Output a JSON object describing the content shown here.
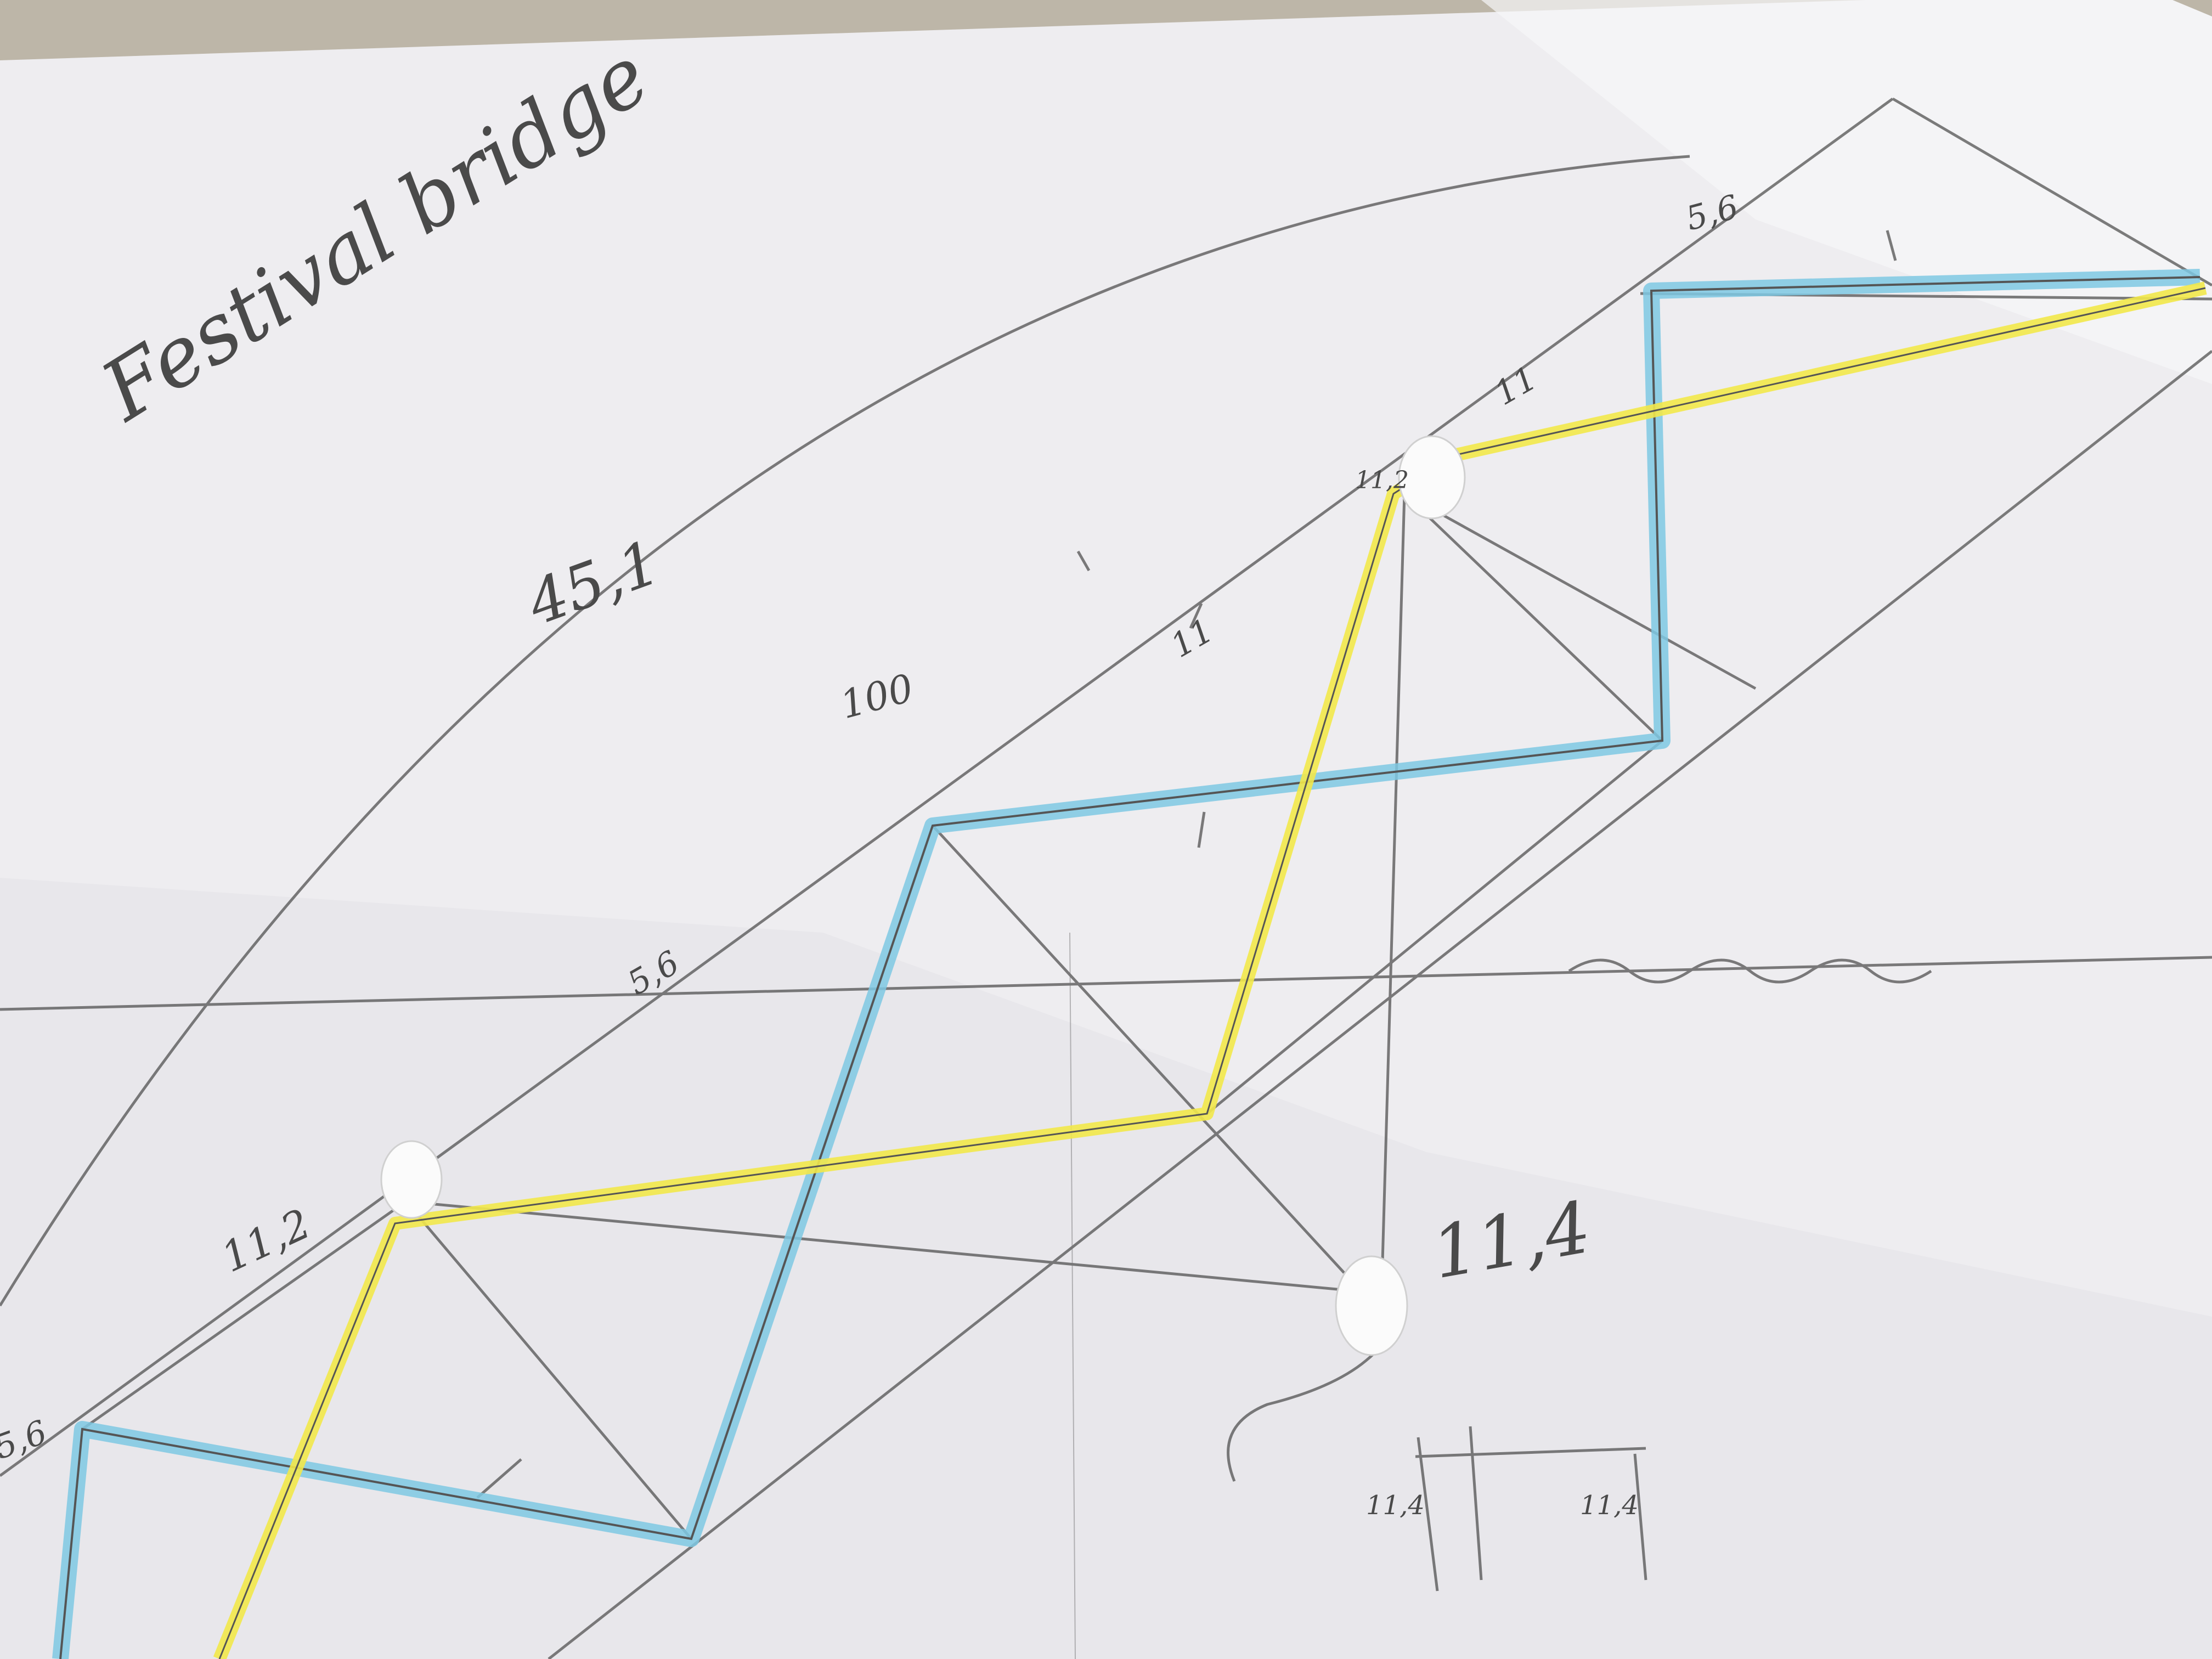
{
  "title": "Festival bridge",
  "annotations": {
    "span_label": "45,1",
    "top_right": "5,6",
    "top_mid": "11",
    "node_upper": "11,2",
    "mid_seg": "11",
    "node_mid": "100",
    "left_mid": "5,6",
    "node_left": "11,2",
    "left_edge": "5,6",
    "right_center": "11,4",
    "bottom_left": "11,4",
    "bottom_right": "11,4"
  },
  "colors": {
    "paper": "#f1f0f2",
    "pencil": "#5c5c5c",
    "blue_highlight": "#7ec8e3",
    "yellow_highlight": "#f2e84a",
    "table": "#bdb6a8"
  }
}
